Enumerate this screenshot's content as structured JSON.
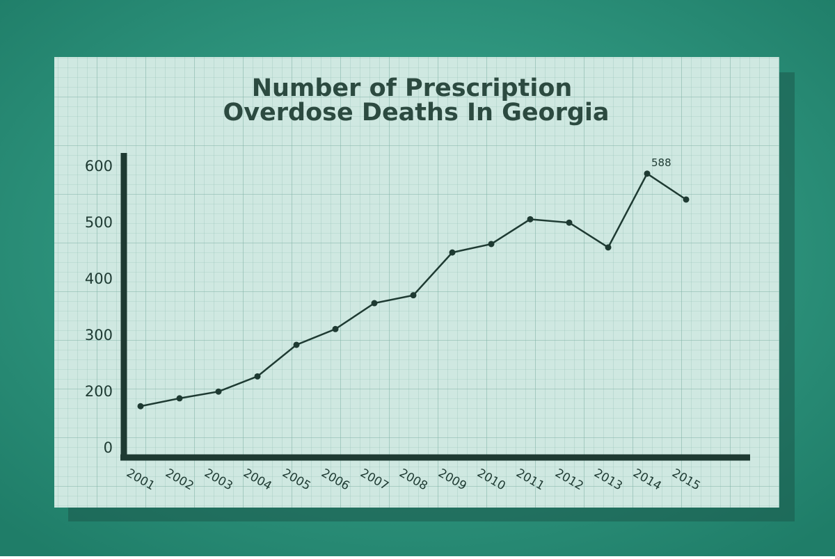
{
  "chart_data": {
    "type": "line",
    "title": [
      "Number of Prescription",
      "Overdose Deaths In Georgia"
    ],
    "categories": [
      "2001",
      "2002",
      "2003",
      "2004",
      "2005",
      "2006",
      "2007",
      "2008",
      "2009",
      "2010",
      "2011",
      "2012",
      "2013",
      "2014",
      "2015"
    ],
    "series": [
      {
        "color": "#1e3a32",
        "values": [
          175,
          189,
          201,
          228,
          284,
          312,
          358,
          372,
          448,
          463,
          507,
          501,
          457,
          588,
          542
        ]
      }
    ],
    "ylim": [
      0,
      620
    ],
    "y_break": [
      0,
      100
    ],
    "yticks": [
      0,
      200,
      300,
      400,
      500,
      600
    ],
    "label_max": true,
    "grid": false
  }
}
